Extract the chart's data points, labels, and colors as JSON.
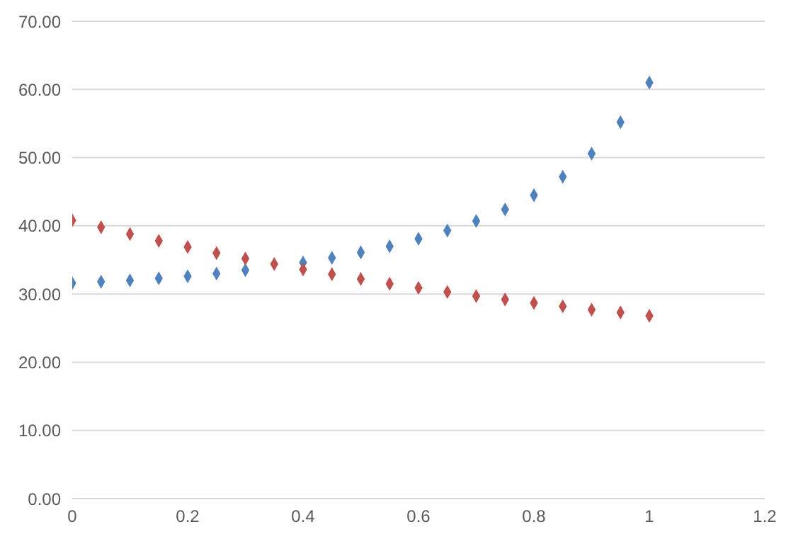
{
  "chart_data": {
    "type": "scatter",
    "x": [
      0,
      0.05,
      0.1,
      0.15,
      0.2,
      0.25,
      0.3,
      0.35,
      0.4,
      0.45,
      0.5,
      0.55,
      0.6,
      0.65,
      0.7,
      0.75,
      0.8,
      0.85,
      0.9,
      0.95,
      1
    ],
    "series": [
      {
        "color": "#4f81bd",
        "values": [
          31.6,
          31.8,
          32.0,
          32.3,
          32.6,
          33.0,
          33.5,
          null,
          34.6,
          35.3,
          36.1,
          37.0,
          38.1,
          39.3,
          40.7,
          42.4,
          44.5,
          47.2,
          50.6,
          55.2,
          61.0
        ]
      },
      {
        "color": "#c0504d",
        "values": [
          40.8,
          39.8,
          38.8,
          37.8,
          36.9,
          36.0,
          35.2,
          34.4,
          33.6,
          32.9,
          32.2,
          31.5,
          30.9,
          30.3,
          29.7,
          29.2,
          28.7,
          28.2,
          27.7,
          27.3,
          26.8
        ]
      }
    ],
    "xlim": [
      0,
      1.2
    ],
    "xticks": [
      0,
      0.2,
      0.4,
      0.6,
      0.8,
      1,
      1.2
    ],
    "ylim": [
      0,
      70
    ],
    "yticks": [
      {
        "value": 0,
        "label": "0.00"
      },
      {
        "value": 10,
        "label": "10.00"
      },
      {
        "value": 20,
        "label": "20.00"
      },
      {
        "value": 30,
        "label": "30.00"
      },
      {
        "value": 40,
        "label": "40.00"
      },
      {
        "value": 50,
        "label": "50.00"
      },
      {
        "value": 60,
        "label": "60.00"
      },
      {
        "value": 70,
        "label": "70.00"
      }
    ],
    "grid": "y",
    "marker": "diamond"
  }
}
